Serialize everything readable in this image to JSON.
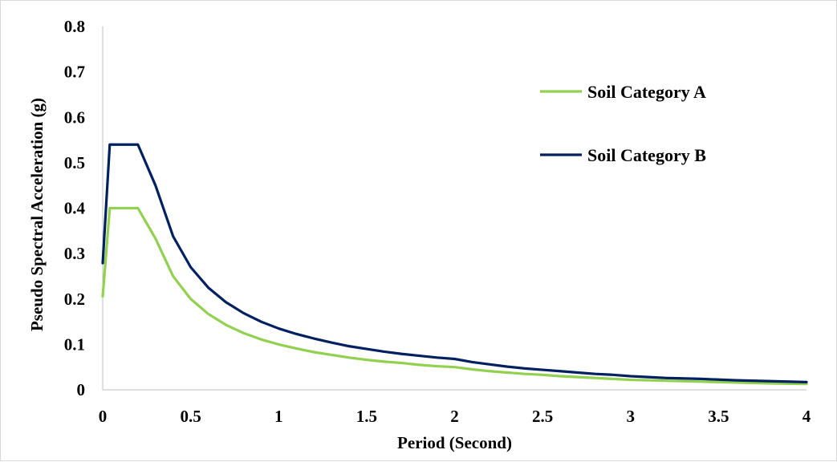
{
  "chart_data": {
    "type": "line",
    "title": "",
    "xlabel": "Period (Second)",
    "ylabel": "Pseudo Spectral Acceleration (g)",
    "xlim": [
      0,
      4
    ],
    "ylim": [
      0,
      0.8
    ],
    "x_ticks": [
      "0",
      "0.5",
      "1",
      "1.5",
      "2",
      "2.5",
      "3",
      "3.5",
      "4"
    ],
    "y_ticks": [
      "0",
      "0.1",
      "0.2",
      "0.3",
      "0.4",
      "0.5",
      "0.6",
      "0.7",
      "0.8"
    ],
    "grid": false,
    "legend_position": "right",
    "series": [
      {
        "name": "Soil Category A",
        "color": "#92D050",
        "points": [
          [
            0,
            0.206
          ],
          [
            0.04,
            0.4
          ],
          [
            0.2,
            0.4
          ],
          [
            0.3,
            0.333
          ],
          [
            0.4,
            0.25
          ],
          [
            0.5,
            0.2
          ],
          [
            0.6,
            0.167
          ],
          [
            0.7,
            0.143
          ],
          [
            0.8,
            0.125
          ],
          [
            0.9,
            0.111
          ],
          [
            1.0,
            0.1
          ],
          [
            1.1,
            0.091
          ],
          [
            1.2,
            0.083
          ],
          [
            1.3,
            0.077
          ],
          [
            1.4,
            0.071
          ],
          [
            1.5,
            0.066
          ],
          [
            1.6,
            0.062
          ],
          [
            1.7,
            0.059
          ],
          [
            1.8,
            0.055
          ],
          [
            1.9,
            0.052
          ],
          [
            2.0,
            0.05
          ],
          [
            2.1,
            0.045
          ],
          [
            2.2,
            0.041
          ],
          [
            2.3,
            0.038
          ],
          [
            2.4,
            0.035
          ],
          [
            2.5,
            0.033
          ],
          [
            2.6,
            0.03
          ],
          [
            2.7,
            0.028
          ],
          [
            2.8,
            0.026
          ],
          [
            2.9,
            0.024
          ],
          [
            3.0,
            0.022
          ],
          [
            3.2,
            0.02
          ],
          [
            3.4,
            0.018
          ],
          [
            3.6,
            0.016
          ],
          [
            3.8,
            0.014
          ],
          [
            4.0,
            0.013
          ]
        ]
      },
      {
        "name": "Soil Category B",
        "color": "#002060",
        "points": [
          [
            0,
            0.279
          ],
          [
            0.04,
            0.54
          ],
          [
            0.2,
            0.54
          ],
          [
            0.3,
            0.45
          ],
          [
            0.4,
            0.338
          ],
          [
            0.5,
            0.27
          ],
          [
            0.6,
            0.225
          ],
          [
            0.7,
            0.193
          ],
          [
            0.8,
            0.169
          ],
          [
            0.9,
            0.15
          ],
          [
            1.0,
            0.135
          ],
          [
            1.1,
            0.123
          ],
          [
            1.2,
            0.113
          ],
          [
            1.3,
            0.104
          ],
          [
            1.4,
            0.096
          ],
          [
            1.5,
            0.09
          ],
          [
            1.6,
            0.084
          ],
          [
            1.7,
            0.079
          ],
          [
            1.8,
            0.075
          ],
          [
            1.9,
            0.071
          ],
          [
            2.0,
            0.068
          ],
          [
            2.1,
            0.061
          ],
          [
            2.2,
            0.056
          ],
          [
            2.3,
            0.051
          ],
          [
            2.4,
            0.047
          ],
          [
            2.5,
            0.044
          ],
          [
            2.6,
            0.041
          ],
          [
            2.7,
            0.038
          ],
          [
            2.8,
            0.035
          ],
          [
            2.9,
            0.033
          ],
          [
            3.0,
            0.03
          ],
          [
            3.2,
            0.026
          ],
          [
            3.4,
            0.024
          ],
          [
            3.6,
            0.021
          ],
          [
            3.8,
            0.019
          ],
          [
            4.0,
            0.017
          ]
        ]
      }
    ]
  }
}
